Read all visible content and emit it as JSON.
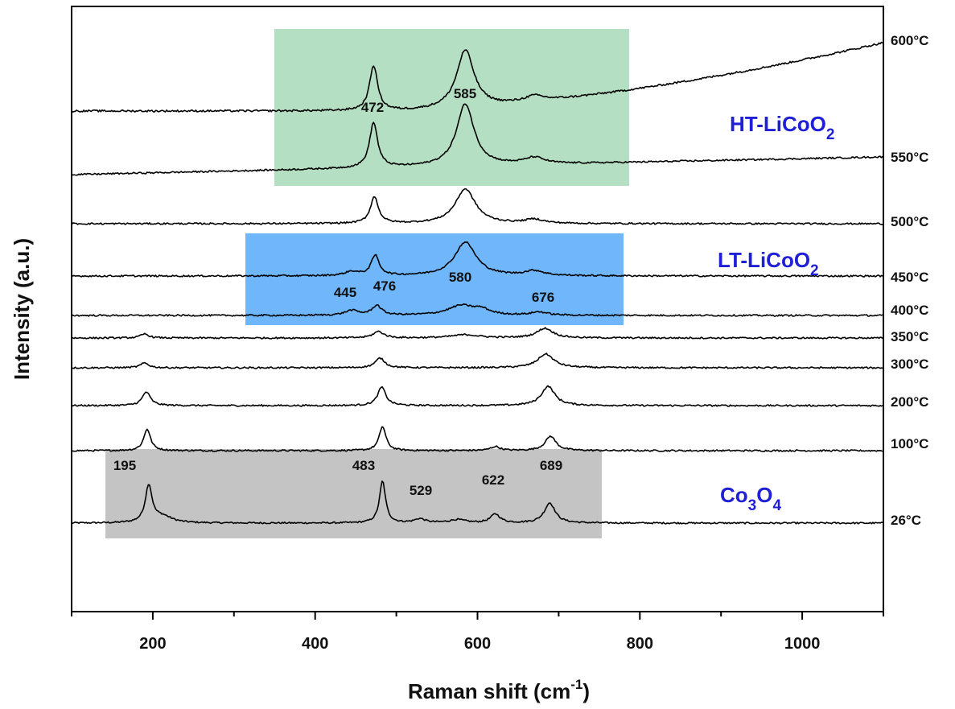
{
  "chart_data": {
    "type": "line",
    "title": "",
    "xlabel": "Raman shift (cm",
    "xlabel_sup": "-1",
    "xlabel_end": ")",
    "ylabel": "Intensity (a.u.)",
    "xlim": [
      100,
      1100
    ],
    "xticks": [
      200,
      400,
      600,
      800,
      1000
    ],
    "y_ticks_shown": false,
    "grid": false,
    "series": [
      {
        "name": "26°C",
        "offset": 0,
        "baseline": 0,
        "slope": 0,
        "noise": 1.0,
        "peaks": [
          [
            195,
            46,
            5
          ],
          [
            212,
            8,
            14
          ],
          [
            483,
            52,
            4.5
          ],
          [
            529,
            5,
            8
          ],
          [
            575,
            4,
            12
          ],
          [
            622,
            11,
            7
          ],
          [
            689,
            25,
            8
          ]
        ]
      },
      {
        "name": "100°C",
        "offset": 90,
        "baseline": 0,
        "slope": 0,
        "noise": 1.0,
        "peaks": [
          [
            193,
            27,
            5
          ],
          [
            483,
            30,
            5
          ],
          [
            622,
            5,
            7
          ],
          [
            690,
            18,
            8
          ]
        ]
      },
      {
        "name": "200°C",
        "offset": 146,
        "baseline": 0,
        "slope": 0,
        "noise": 1.0,
        "peaks": [
          [
            192,
            17,
            6
          ],
          [
            482,
            23,
            6
          ],
          [
            687,
            24,
            10
          ]
        ]
      },
      {
        "name": "300°C",
        "offset": 193,
        "baseline": 0,
        "slope": 0,
        "noise": 1.0,
        "peaks": [
          [
            190,
            6,
            6
          ],
          [
            480,
            12,
            7
          ],
          [
            684,
            17,
            12
          ]
        ]
      },
      {
        "name": "350°C",
        "offset": 230,
        "baseline": 0,
        "slope": 0,
        "noise": 1.0,
        "peaks": [
          [
            190,
            5,
            6
          ],
          [
            478,
            8,
            8
          ],
          [
            585,
            4,
            20
          ],
          [
            683,
            12,
            12
          ]
        ]
      },
      {
        "name": "400°C",
        "offset": 258,
        "baseline": 0,
        "slope": 0,
        "noise": 1.0,
        "peaks": [
          [
            445,
            6,
            10
          ],
          [
            476,
            12,
            7
          ],
          [
            580,
            12,
            20
          ],
          [
            605,
            6,
            12
          ],
          [
            676,
            4,
            12
          ]
        ]
      },
      {
        "name": "450°C",
        "offset": 307,
        "baseline": 0,
        "slope": 0,
        "noise": 1.0,
        "peaks": [
          [
            445,
            5,
            10
          ],
          [
            474,
            25,
            6
          ],
          [
            585,
            42,
            16
          ],
          [
            670,
            6,
            14
          ]
        ]
      },
      {
        "name": "500°C",
        "offset": 372,
        "baseline": 0,
        "slope": 0,
        "noise": 1.0,
        "peaks": [
          [
            473,
            33,
            6
          ],
          [
            585,
            43,
            15
          ],
          [
            670,
            5,
            14
          ]
        ]
      },
      {
        "name": "550°C",
        "offset": 433,
        "baseline": 0,
        "slope": 22,
        "noise": 1.0,
        "peaks": [
          [
            472,
            56,
            6
          ],
          [
            585,
            77,
            13
          ],
          [
            670,
            8,
            15
          ]
        ]
      },
      {
        "name": "600°C",
        "offset": 512,
        "baseline": 0,
        "slope": 0,
        "curve": 85,
        "noise": 1.2,
        "peaks": [
          [
            472,
            56,
            6
          ],
          [
            585,
            72,
            13
          ],
          [
            670,
            7,
            15
          ]
        ]
      }
    ],
    "temperature_labels": [
      "600°C",
      "550°C",
      "500°C",
      "450°C",
      "400°C",
      "350°C",
      "300°C",
      "200°C",
      "100°C",
      "26°C"
    ],
    "peak_labels": [
      {
        "text": "472"
      },
      {
        "text": "585"
      },
      {
        "text": "445"
      },
      {
        "text": "476"
      },
      {
        "text": "580"
      },
      {
        "text": "676"
      },
      {
        "text": "195"
      },
      {
        "text": "483"
      },
      {
        "text": "529"
      },
      {
        "text": "622"
      },
      {
        "text": "689"
      }
    ],
    "regions": [
      {
        "name": "HT-LiCoO2",
        "label_main": "HT-LiCoO",
        "label_sub": "2",
        "color": "#b5dfc2",
        "x_range": [
          353,
          787
        ]
      },
      {
        "name": "LT-LiCoO2",
        "label_main": "LT-LiCoO",
        "label_sub": "2",
        "color": "#6fb6fa",
        "x_range": [
          317,
          780
        ]
      },
      {
        "name": "Co3O4",
        "label_main": "Co",
        "label_sub1": "3",
        "label_mid": "O",
        "label_sub2": "4",
        "color": "#c4c4c4",
        "x_range": [
          141,
          752
        ]
      }
    ],
    "phase_label_color": "#1f1fd6"
  }
}
